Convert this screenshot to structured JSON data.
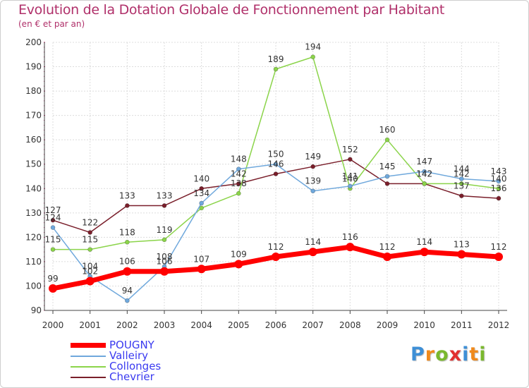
{
  "title": "Evolution de la Dotation Globale de Fonctionnement par Habitant",
  "subtitle": "(en € et par an)",
  "logo": {
    "text": "Proxiti",
    "letter_colors": [
      "#3e8fd6",
      "#f08a1c",
      "#7ab82e",
      "#e23030",
      "#3e8fd6",
      "#f08a1c",
      "#7ab82e"
    ]
  },
  "chart_data": {
    "type": "line",
    "title": "Evolution de la Dotation Globale de Fonctionnement par Habitant",
    "subtitle": "(en € et par an)",
    "x": [
      "2000",
      "2001",
      "2002",
      "2003",
      "2004",
      "2005",
      "2006",
      "2007",
      "2008",
      "2009",
      "2010",
      "2011",
      "2012"
    ],
    "ylim": [
      90,
      200
    ],
    "yticks": [
      90,
      100,
      110,
      120,
      130,
      140,
      150,
      160,
      170,
      180,
      190,
      200
    ],
    "grid": true,
    "legend_position": "bottom-left",
    "series": [
      {
        "name": "Chevrier",
        "color": "#7a1f2b",
        "values": [
          127,
          122,
          133,
          133,
          140,
          142,
          146,
          149,
          152,
          142,
          142,
          137,
          136
        ],
        "labels": [
          "127",
          "122",
          "133",
          "133",
          "140",
          "142",
          "146",
          "149",
          "152",
          "",
          "142",
          "137",
          "136"
        ]
      },
      {
        "name": "Collonges",
        "color": "#8bd44a",
        "values": [
          115,
          115,
          118,
          119,
          132,
          138,
          189,
          194,
          140,
          160,
          142,
          142,
          140
        ],
        "labels": [
          "115",
          "115",
          "118",
          "119",
          "",
          "138",
          "189",
          "194",
          "140",
          "160",
          "142",
          "142",
          "140"
        ]
      },
      {
        "name": "Valleiry",
        "color": "#6fa8dc",
        "values": [
          124,
          104,
          94,
          108,
          134,
          148,
          150,
          139,
          141,
          145,
          147,
          144,
          143
        ],
        "labels": [
          "124",
          "104",
          "94",
          "108",
          "134",
          "148",
          "150",
          "139",
          "141",
          "145",
          "147",
          "144",
          "143"
        ]
      },
      {
        "name": "POUGNY",
        "color": "#ff0000",
        "values": [
          99,
          102,
          106,
          106,
          107,
          109,
          112,
          114,
          116,
          112,
          114,
          113,
          112
        ],
        "labels": [
          "99",
          "102",
          "106",
          "106",
          "107",
          "109",
          "112",
          "114",
          "116",
          "112",
          "114",
          "113",
          "112"
        ]
      }
    ],
    "legend": [
      "POUGNY",
      "Valleiry",
      "Collonges",
      "Chevrier"
    ]
  }
}
